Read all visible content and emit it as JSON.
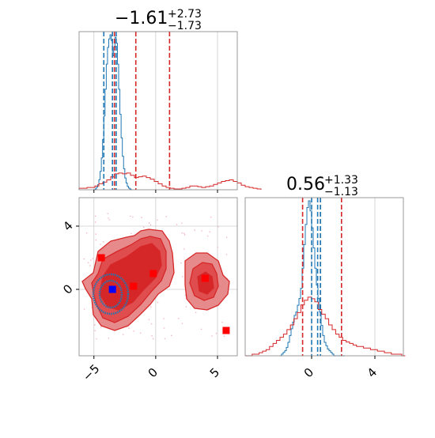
{
  "chart_data": {
    "type": "corner",
    "colors": {
      "red": "#d62728",
      "red_fill": "#e78a8b",
      "red_mid": "#e04d4f",
      "blue": "#1f77b4",
      "marker_red": "#ff0000",
      "marker_blue": "#0000ff",
      "grid": "#cccccc"
    },
    "param1": {
      "title_value": "−1.61",
      "title_sup": "+2.73",
      "title_sub": "−1.73",
      "range": [
        -6.2,
        6.6
      ],
      "ticks": [
        -5,
        0,
        5
      ],
      "tick_labels": [
        "−5",
        "0",
        "5"
      ],
      "quantiles_red": [
        -3.34,
        -1.61,
        1.12
      ],
      "quantiles_blue": [
        -4.2,
        -3.5,
        -3.2
      ],
      "hist_red": {
        "edges_start": -6.2,
        "bin_width": 0.32,
        "counts": [
          2,
          2,
          3,
          3,
          5,
          8,
          10,
          13,
          17,
          21,
          22,
          21,
          22,
          19,
          16,
          17,
          18,
          16,
          14,
          11,
          8,
          5,
          3,
          2,
          1,
          1,
          2,
          3,
          5,
          5,
          4,
          3,
          4,
          5,
          7,
          9,
          11,
          12,
          13,
          11,
          9,
          6,
          4,
          3,
          2,
          1
        ]
      },
      "hist_blue": {
        "edges_start": -5.0,
        "bin_width": 0.1,
        "counts": [
          0,
          1,
          3,
          6,
          12,
          22,
          38,
          60,
          88,
          120,
          150,
          170,
          180,
          185,
          178,
          160,
          170,
          182,
          175,
          150,
          120,
          90,
          62,
          40,
          25,
          14,
          8,
          4,
          2,
          1,
          0
        ]
      }
    },
    "param2": {
      "title_value": "0.56",
      "title_sup": "+1.33",
      "title_sub": "−1.13",
      "range": [
        -4.2,
        5.8
      ],
      "ticks": [
        0,
        4
      ],
      "tick_labels": [
        "0",
        "4"
      ],
      "quantiles_red": [
        -0.57,
        0.56,
        1.89
      ],
      "quantiles_blue": [
        0.0,
        0.38,
        0.56
      ],
      "hist_red": {
        "edges_start": -4.2,
        "bin_width": 0.22,
        "counts": [
          0,
          0,
          1,
          1,
          2,
          3,
          4,
          6,
          8,
          10,
          12,
          14,
          17,
          20,
          24,
          28,
          33,
          36,
          38,
          37,
          35,
          30,
          27,
          24,
          20,
          17,
          14,
          12,
          10,
          9,
          8,
          7,
          6,
          6,
          5,
          5,
          4,
          4,
          3,
          3,
          2,
          2,
          1,
          1,
          1,
          0
        ]
      },
      "hist_blue": {
        "edges_start": -2.0,
        "bin_width": 0.1,
        "counts": [
          0,
          1,
          2,
          3,
          5,
          8,
          12,
          16,
          20,
          24,
          26,
          30,
          34,
          40,
          52,
          66,
          78,
          88,
          92,
          86,
          76,
          64,
          52,
          42,
          34,
          26,
          18,
          12,
          8,
          6,
          4,
          3,
          2,
          1,
          0,
          0,
          0,
          0,
          0,
          0,
          0
        ]
      }
    },
    "markers": {
      "red_squares": [
        [
          -4.4,
          2.0
        ],
        [
          -0.2,
          1.0
        ],
        [
          -1.8,
          0.2
        ],
        [
          4.0,
          0.7
        ],
        [
          5.7,
          -2.6
        ]
      ],
      "blue_square": [
        -3.5,
        0.0
      ]
    }
  }
}
